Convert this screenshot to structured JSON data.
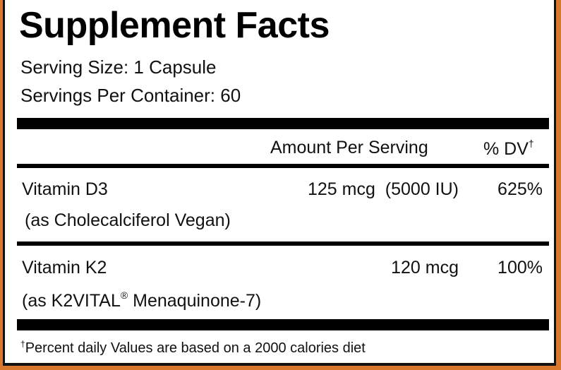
{
  "title": "Supplement Facts",
  "serving_size": "Serving Size: 1 Capsule",
  "servings_per_container": "Servings Per Container: 60",
  "header": {
    "amount": "Amount Per Serving",
    "dv": "% DV",
    "dv_mark": "†"
  },
  "rows": [
    {
      "name": "Vitamin D3",
      "sub": "(as Cholecalciferol Vegan)",
      "amount": "125 mcg  (5000 IU)",
      "dv": "625%"
    },
    {
      "name": "Vitamin K2",
      "sub_prefix": "(as K2VITAL",
      "sub_mark": "®",
      "sub_suffix": " Menaquinone-7)",
      "amount": "120 mcg",
      "dv": "100%"
    }
  ],
  "footnote": {
    "mark": "†",
    "text": "Percent daily Values are based on a 2000 calories diet"
  },
  "colors": {
    "background": "#d9792f",
    "panel": "#ffffff",
    "rule": "#000000"
  }
}
